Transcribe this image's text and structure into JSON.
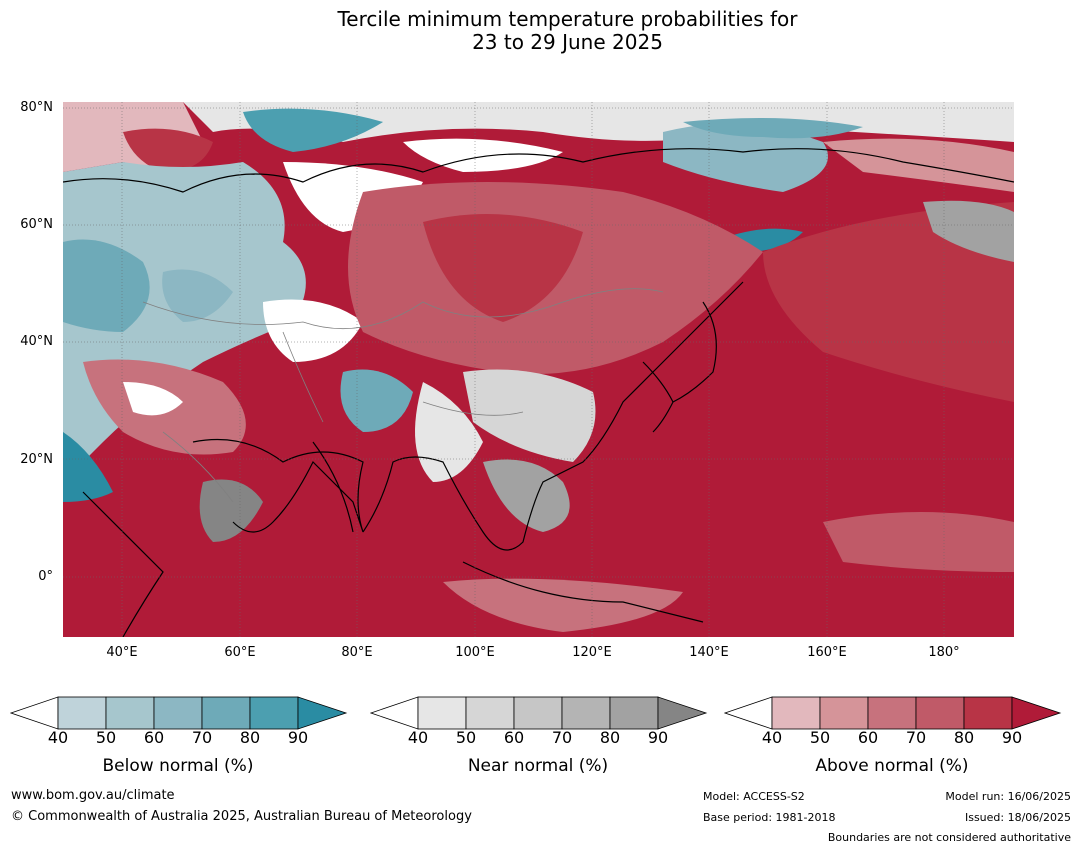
{
  "title_line1": "Tercile minimum temperature probabilities for",
  "title_line2": "23 to 29 June 2025",
  "latitude_labels": [
    "80°N",
    "60°N",
    "40°N",
    "20°N",
    "0°"
  ],
  "longitude_labels": [
    "40°E",
    "60°E",
    "80°E",
    "100°E",
    "120°E",
    "140°E",
    "160°E",
    "180°"
  ],
  "colorbars": [
    {
      "label": "Below normal (%)",
      "ticks": [
        "40",
        "50",
        "60",
        "70",
        "80",
        "90"
      ],
      "colors": [
        "#ffffff",
        "#bfd3da",
        "#a6c6cd",
        "#8cb7c3",
        "#6eaab8",
        "#4c9fb0",
        "#2a8ca3"
      ]
    },
    {
      "label": "Near normal (%)",
      "ticks": [
        "40",
        "50",
        "60",
        "70",
        "80",
        "90"
      ],
      "colors": [
        "#ffffff",
        "#e6e6e6",
        "#d6d6d6",
        "#c6c6c6",
        "#b4b4b4",
        "#a2a2a2",
        "#858585"
      ]
    },
    {
      "label": "Above normal (%)",
      "ticks": [
        "40",
        "50",
        "60",
        "70",
        "80",
        "90"
      ],
      "colors": [
        "#ffffff",
        "#e2b8bd",
        "#d59499",
        "#c7727d",
        "#c05a68",
        "#b83446",
        "#b01b38"
      ]
    }
  ],
  "footer": {
    "website": "www.bom.gov.au/climate",
    "copyright": "© Commonwealth of Australia 2025, Australian Bureau of Meteorology",
    "model": "Model: ACCESS-S2",
    "base_period": "Base period: 1981-2018",
    "model_run": "Model run: 16/06/2025",
    "issued": "Issued: 18/06/2025",
    "boundaries": "Boundaries are not considered authoritative"
  }
}
